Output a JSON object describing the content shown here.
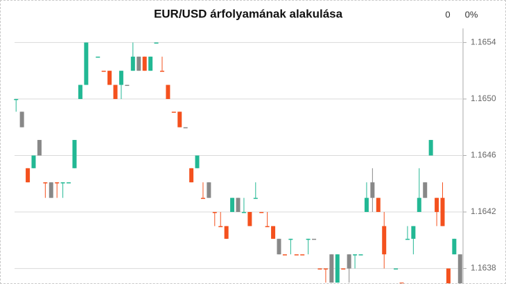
{
  "chart_data": {
    "type": "candlestick",
    "title": "EUR/USD árfolyamának alakulása",
    "change": "0",
    "change_percent": "0%",
    "ylim": [
      1.16369,
      1.1655
    ],
    "yticks": [
      1.1654,
      {
        "value": 1.165,
        "label": "1.1650"
      },
      1.1646,
      1.1642,
      1.1638
    ],
    "grid": true,
    "open": [
      1.165,
      1.16491,
      1.16451,
      1.16451,
      1.16471,
      1.16441,
      1.16441,
      1.16441,
      1.16441,
      1.16441,
      1.16451,
      1.165,
      1.1651,
      null,
      1.1653,
      1.1652,
      1.1652,
      1.1651,
      1.1651,
      1.1651,
      1.1652,
      1.1653,
      1.1653,
      1.1652,
      1.1654,
      1.1652,
      1.1651,
      1.16491,
      1.16491,
      1.1648,
      1.16451,
      1.16451,
      1.1643,
      1.16441,
      1.1642,
      1.1641,
      1.1641,
      1.1642,
      1.1643,
      1.1642,
      1.1642,
      1.1643,
      1.1642,
      1.1641,
      1.1641,
      1.16401,
      1.1639,
      1.16401,
      1.1639,
      1.1639,
      1.16401,
      1.16401,
      1.1638,
      1.1638,
      1.1639,
      1.1637,
      1.1638,
      1.1639,
      1.1639,
      1.1639,
      1.1642,
      1.16441,
      1.1643,
      1.1641,
      null,
      1.1638,
      1.1637,
      1.16401,
      1.16401,
      1.1642,
      1.16441,
      1.1646,
      1.1643,
      1.1643,
      1.1638,
      1.1639,
      1.1639
    ],
    "high": [
      1.165,
      1.16491,
      1.16451,
      1.1646,
      1.16471,
      1.16441,
      1.16441,
      1.16441,
      1.16441,
      1.16441,
      1.16471,
      1.1651,
      1.1654,
      null,
      1.1653,
      1.1652,
      1.1652,
      1.1651,
      1.1652,
      1.1651,
      1.1654,
      1.1653,
      1.1653,
      1.1653,
      1.1654,
      1.1653,
      1.1651,
      1.16491,
      1.16491,
      1.1648,
      1.16451,
      1.1646,
      1.16441,
      1.16441,
      1.1642,
      1.1642,
      1.1641,
      1.1643,
      1.1643,
      1.1643,
      1.1642,
      1.16441,
      1.1642,
      1.1642,
      1.1641,
      1.16401,
      1.1639,
      1.16401,
      1.1639,
      1.1639,
      1.16401,
      1.16401,
      1.1638,
      1.1638,
      1.1639,
      1.1639,
      1.1638,
      1.1639,
      1.1639,
      1.1639,
      1.16441,
      1.16451,
      1.1643,
      1.1642,
      null,
      1.1638,
      1.1637,
      1.1641,
      1.1641,
      1.16451,
      1.16441,
      1.16471,
      1.1643,
      1.16441,
      1.1638,
      1.16401,
      1.1639
    ],
    "low": [
      1.16491,
      1.1648,
      1.16441,
      1.16451,
      1.1646,
      1.1643,
      1.1643,
      1.1643,
      1.1643,
      1.16441,
      1.16451,
      1.165,
      1.1651,
      null,
      1.1653,
      1.1652,
      1.1651,
      1.165,
      1.165,
      1.1651,
      1.1652,
      1.1652,
      1.1652,
      1.1652,
      1.1654,
      1.1652,
      1.165,
      1.16491,
      1.1648,
      1.1648,
      1.16441,
      1.16451,
      1.1643,
      1.1643,
      1.1641,
      1.1641,
      1.16401,
      1.1642,
      1.1642,
      1.1642,
      1.1641,
      1.1643,
      1.1642,
      1.1641,
      1.16401,
      1.1639,
      1.1639,
      1.1639,
      1.1639,
      1.1639,
      1.1639,
      1.16401,
      1.1638,
      1.1637,
      1.1637,
      1.1637,
      1.1638,
      1.1637,
      1.1638,
      1.1639,
      1.1642,
      1.1642,
      1.1642,
      1.1638,
      null,
      1.1638,
      1.1637,
      1.16401,
      1.1639,
      1.1642,
      1.1643,
      1.1646,
      1.1641,
      1.1641,
      1.16369,
      1.1639,
      1.16369
    ],
    "close": [
      1.165,
      1.1648,
      1.16441,
      1.1646,
      1.1646,
      1.16441,
      1.1643,
      1.16441,
      1.16441,
      1.16441,
      1.16471,
      1.1651,
      1.1654,
      null,
      1.1653,
      1.1652,
      1.1651,
      1.165,
      1.1652,
      1.1651,
      1.1653,
      1.1652,
      1.1652,
      1.1653,
      1.1654,
      1.1652,
      1.165,
      1.16491,
      1.1648,
      1.1648,
      1.16441,
      1.1646,
      1.1643,
      1.1643,
      1.1642,
      1.1641,
      1.16401,
      1.1643,
      1.1642,
      1.1642,
      1.1641,
      1.1643,
      1.1642,
      1.1641,
      1.16401,
      1.1639,
      1.1639,
      1.16401,
      1.1639,
      1.1639,
      1.16401,
      1.16401,
      1.1638,
      1.1638,
      1.1637,
      1.1639,
      1.1638,
      1.1638,
      1.1639,
      1.1639,
      1.1643,
      1.1643,
      1.1642,
      1.1639,
      null,
      1.1638,
      1.1637,
      1.16401,
      1.1641,
      1.1643,
      1.1643,
      1.16471,
      1.1642,
      1.1641,
      1.16369,
      1.16401,
      1.16369
    ],
    "colors": [
      "#22b894",
      "#888888",
      "#f4511e",
      "#22b894",
      "#888888",
      "#f4511e",
      "#888888",
      "#f4511e",
      "#22b894",
      "#22b894",
      "#22b894",
      "#22b894",
      "#22b894",
      null,
      "#22b894",
      "#f4511e",
      "#f4511e",
      "#f4511e",
      "#22b894",
      "#888888",
      "#22b894",
      "#888888",
      "#f4511e",
      "#22b894",
      "#22b894",
      "#f4511e",
      "#f4511e",
      "#f4511e",
      "#f4511e",
      "#888888",
      "#f4511e",
      "#22b894",
      "#f4511e",
      "#888888",
      "#f4511e",
      "#f4511e",
      "#f4511e",
      "#22b894",
      "#888888",
      "#22b894",
      "#f4511e",
      "#22b894",
      "#f4511e",
      "#f4511e",
      "#f4511e",
      "#888888",
      "#f4511e",
      "#22b894",
      "#f4511e",
      "#f4511e",
      "#22b894",
      "#888888",
      "#f4511e",
      "#f4511e",
      "#888888",
      "#22b894",
      "#f4511e",
      "#888888",
      "#22b894",
      "#22b894",
      "#22b894",
      "#888888",
      "#f4511e",
      "#f4511e",
      null,
      "#22b894",
      "#f4511e",
      "#22b894",
      "#22b894",
      "#22b894",
      "#888888",
      "#22b894",
      "#f4511e",
      "#f4511e",
      "#f4511e",
      "#22b894",
      "#888888"
    ]
  }
}
